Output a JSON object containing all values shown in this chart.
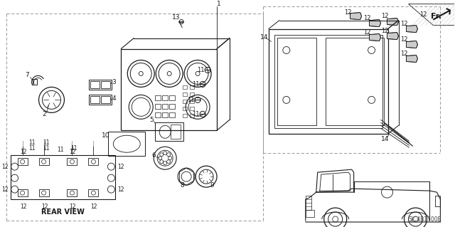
{
  "background_color": "#ffffff",
  "line_color": "#1a1a1a",
  "gray_color": "#666666",
  "light_gray": "#999999",
  "diagram_code": "SJC4B1700B"
}
